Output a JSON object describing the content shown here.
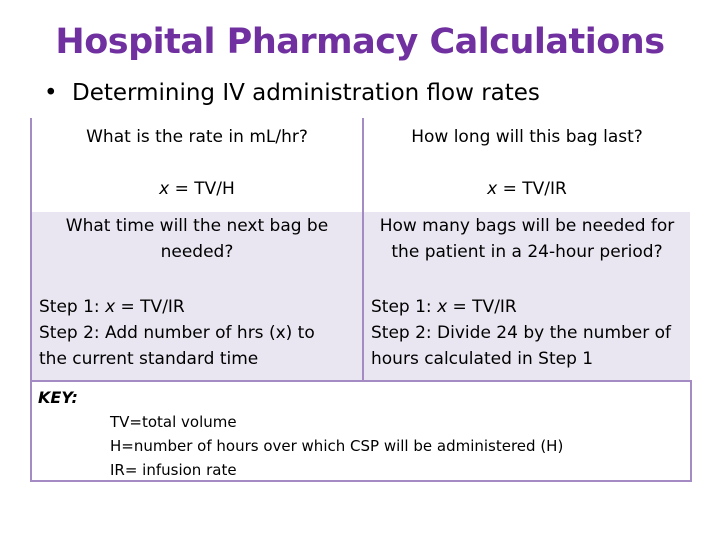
{
  "title": "Hospital Pharmacy Calculations",
  "bullet": "Determining IV administration flow rates",
  "table": {
    "q1": "What is the rate in mL/hr?",
    "q1_formula_var": "x",
    "q1_formula_rest": " = TV/H",
    "q2": "How long will this bag last?",
    "q2_formula_var": "x",
    "q2_formula_rest": " = TV/IR",
    "q3_line1": "What time will the next bag be",
    "q3_line2": "needed?",
    "q4_line1": "How many bags will be needed for",
    "q4_line2": "the patient in a 24-hour period?",
    "a3": {
      "step1_prefix": "Step 1: ",
      "step1_var": "x",
      "step1_rest": " = TV/IR",
      "step2_line1": "Step 2:  Add number of hrs (x) to",
      "step2_line2": "the current standard time"
    },
    "a4": {
      "step1_prefix": "Step 1: ",
      "step1_var": "x",
      "step1_rest": " = TV/IR",
      "step2_line1": "Step 2:  Divide 24 by the number of",
      "step2_line2": "hours calculated in Step 1"
    }
  },
  "key": {
    "label": "KEY:",
    "items": [
      "TV=total volume",
      "H=number of hours over which CSP will be administered (H)",
      "IR= infusion rate"
    ]
  },
  "colors": {
    "title": "#7030a0",
    "border": "#a58bc4",
    "shaded_row": "#e9e6f1"
  }
}
